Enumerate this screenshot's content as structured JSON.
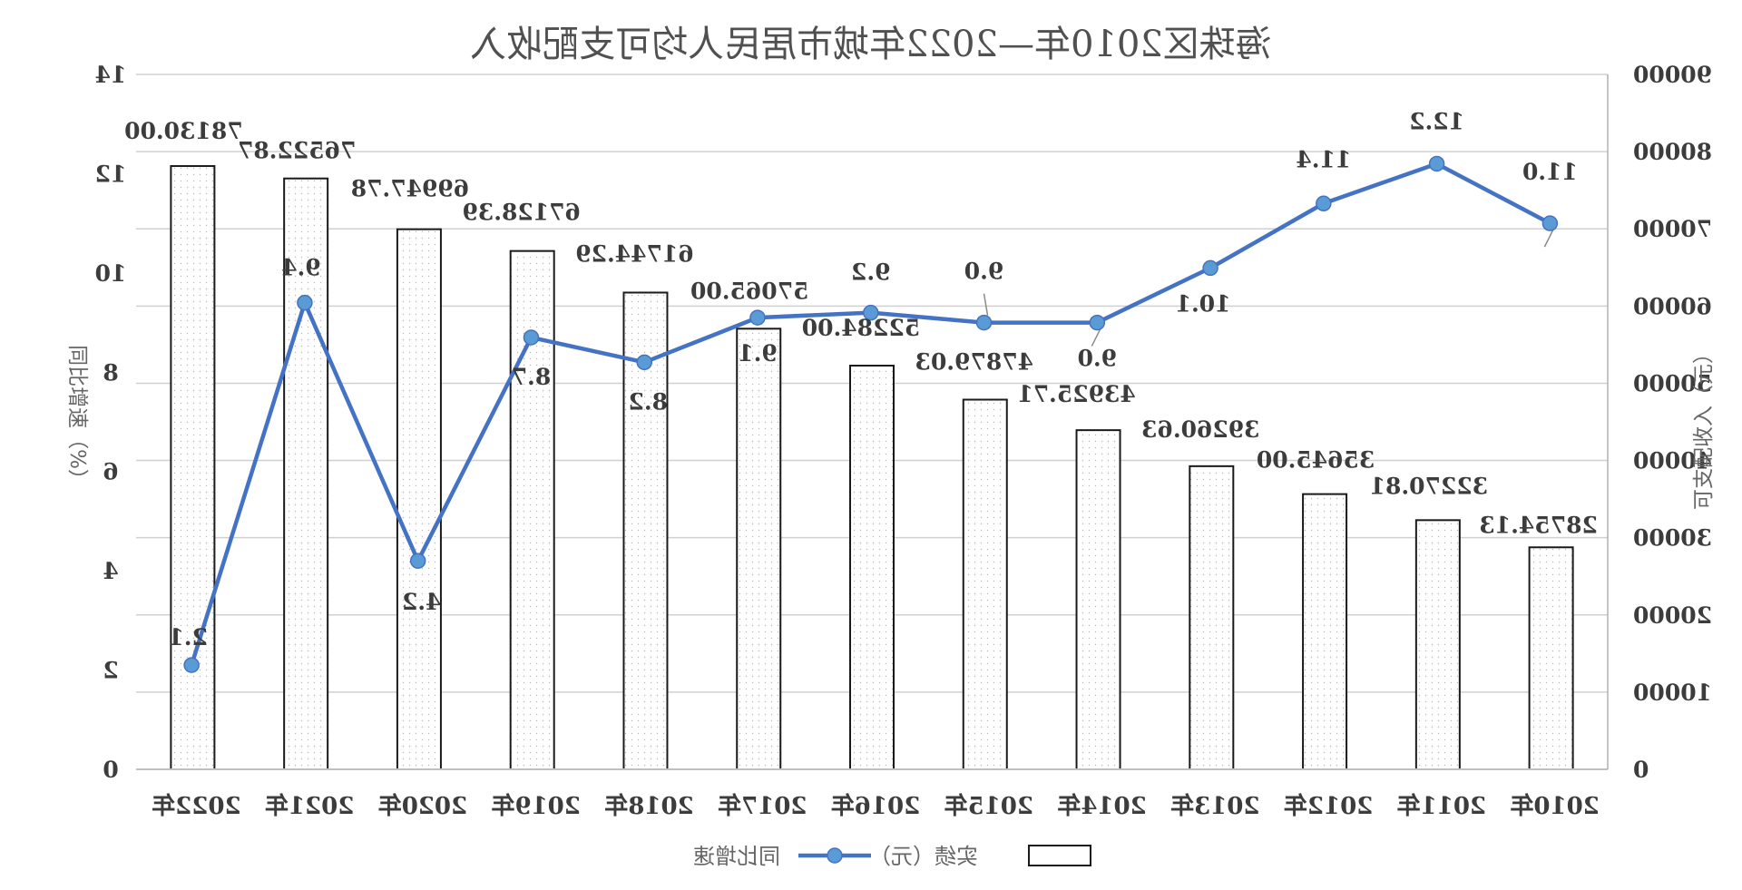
{
  "chart_data": {
    "type": "bar",
    "title": "海珠区2010年—2022年城市居民人均可支配收入",
    "categories": [
      "2022年",
      "2021年",
      "2020年",
      "2019年",
      "2018年",
      "2017年",
      "2016年",
      "2015年",
      "2014年",
      "2013年",
      "2012年",
      "2011年",
      "2010年"
    ],
    "series": [
      {
        "name": "实绩（元）",
        "type": "bar",
        "axis": "right",
        "values": [
          78130.0,
          76522.87,
          69947.78,
          67128.39,
          61744.29,
          57065.0,
          52284.0,
          47879.03,
          43925.71,
          39260.63,
          35645.0,
          32270.81,
          28754.13
        ],
        "labels": [
          "78130.00",
          "76522.87",
          "69947.78",
          "67128.39",
          "61744.29",
          "57065.00",
          "52284.00",
          "47879.03",
          "43925.71",
          "39260.63",
          "35645.00",
          "32270.81",
          "28754.13"
        ]
      },
      {
        "name": "同比增速",
        "type": "line",
        "axis": "left",
        "values": [
          2.1,
          9.4,
          4.2,
          8.7,
          8.2,
          9.1,
          9.2,
          9.0,
          9.0,
          10.1,
          11.4,
          12.2,
          11.0
        ],
        "labels": [
          "2.1",
          "9.4",
          "4.2",
          "8.7",
          "8.2",
          "9.1",
          "9.2",
          "9.0",
          "9.0",
          "10.1",
          "11.4",
          "12.2",
          "11.0"
        ]
      }
    ],
    "left_axis": {
      "label": "同比增速（%）",
      "range": [
        0,
        14
      ],
      "ticks": [
        "0",
        "2",
        "4",
        "6",
        "8",
        "10",
        "12",
        "14"
      ]
    },
    "right_axis": {
      "label": "可支配收入（元）",
      "range": [
        0,
        90000
      ],
      "ticks": [
        "0",
        "10000",
        "20000",
        "30000",
        "40000",
        "50000",
        "60000",
        "70000",
        "80000",
        "90000"
      ]
    },
    "grid": true,
    "legend_position": "bottom",
    "mirrored": true,
    "colors": {
      "line": "#4472c4",
      "marker": "#5b9bd5",
      "bar_fill": "#ffffff",
      "bar_stroke": "#1a1a1a",
      "grid": "#d0d0d0"
    }
  }
}
